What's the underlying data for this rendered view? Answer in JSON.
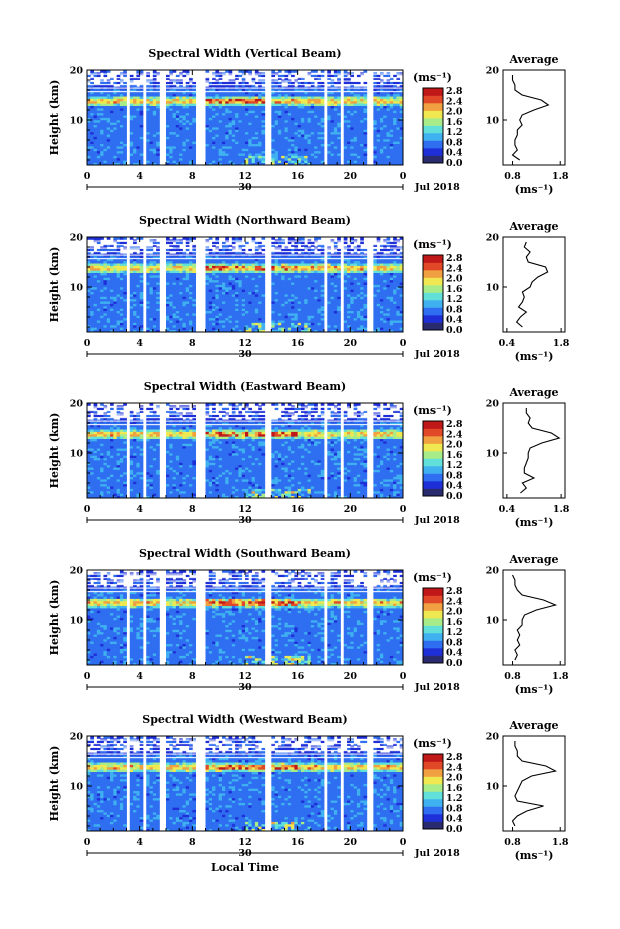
{
  "figure": {
    "xlabel": "Local Time",
    "date_label": "Jul 2018",
    "day_label": "30",
    "ylabel": "Height (km)",
    "cbar_unit": "(ms⁻¹)",
    "avg_title": "Average",
    "avg_xlabel": "(ms⁻¹)",
    "colormap": [
      "#2a2a6e",
      "#1f2fd8",
      "#2f6ef0",
      "#3fb0f0",
      "#60e0d8",
      "#a8ec8a",
      "#f0e850",
      "#f0a040",
      "#e04828",
      "#c01818"
    ]
  },
  "chart_data": [
    {
      "type": "heatmap",
      "title": "Spectral Width (Vertical Beam)",
      "xlabel": "",
      "ylabel": "Height (km)",
      "x_ticks": [
        "0",
        "4",
        "8",
        "12",
        "16",
        "20",
        "0"
      ],
      "xlim": [
        0,
        24
      ],
      "y_ticks": [
        "20",
        "10"
      ],
      "ylim": [
        1,
        20
      ],
      "colorbar": {
        "ticks": [
          "2.8",
          "2.4",
          "2.0",
          "1.6",
          "1.2",
          "0.8",
          "0.4",
          "0.0"
        ],
        "range": [
          0,
          2.8
        ]
      },
      "average": {
        "title": "Average",
        "x_ticks": [
          "0.8",
          "1.8"
        ],
        "xlim": [
          0.6,
          1.9
        ],
        "y_ticks": [
          "20",
          "10"
        ],
        "height": [
          2,
          3,
          4,
          5,
          6,
          7,
          8,
          9,
          10,
          11,
          12,
          13,
          14,
          15,
          16,
          17,
          18,
          19
        ],
        "value": [
          0.95,
          0.8,
          0.9,
          0.85,
          0.85,
          0.9,
          0.9,
          1.0,
          0.95,
          1.0,
          1.25,
          1.55,
          1.4,
          1.0,
          0.85,
          0.85,
          0.8,
          0.8
        ]
      }
    },
    {
      "type": "heatmap",
      "title": "Spectral Width (Northward Beam)",
      "xlabel": "",
      "ylabel": "Height (km)",
      "x_ticks": [
        "0",
        "4",
        "8",
        "12",
        "16",
        "20",
        "0"
      ],
      "xlim": [
        0,
        24
      ],
      "y_ticks": [
        "20",
        "10"
      ],
      "ylim": [
        1,
        20
      ],
      "colorbar": {
        "ticks": [
          "2.8",
          "2.4",
          "2.0",
          "1.6",
          "1.2",
          "0.8",
          "0.4",
          "0.0"
        ],
        "range": [
          0,
          2.8
        ]
      },
      "average": {
        "title": "Average",
        "x_ticks": [
          "0.4",
          "1.8"
        ],
        "xlim": [
          0.3,
          1.9
        ],
        "y_ticks": [
          "20",
          "10"
        ],
        "height": [
          2,
          3,
          4,
          5,
          6,
          7,
          8,
          9,
          10,
          11,
          12,
          13,
          14,
          15,
          16,
          17,
          18,
          19
        ],
        "value": [
          0.8,
          0.65,
          0.75,
          0.9,
          0.7,
          0.8,
          0.85,
          0.8,
          1.0,
          1.05,
          1.2,
          1.45,
          1.4,
          0.95,
          0.9,
          1.0,
          0.85,
          0.9
        ]
      }
    },
    {
      "type": "heatmap",
      "title": "Spectral Width (Eastward Beam)",
      "xlabel": "",
      "ylabel": "Height (km)",
      "x_ticks": [
        "0",
        "4",
        "8",
        "12",
        "16",
        "20",
        "0"
      ],
      "xlim": [
        0,
        24
      ],
      "y_ticks": [
        "20",
        "10"
      ],
      "ylim": [
        1,
        20
      ],
      "colorbar": {
        "ticks": [
          "2.8",
          "2.4",
          "2.0",
          "1.6",
          "1.2",
          "0.8",
          "0.4",
          "0.0"
        ],
        "range": [
          0,
          2.8
        ]
      },
      "average": {
        "title": "Average",
        "x_ticks": [
          "0.4",
          "1.8"
        ],
        "xlim": [
          0.3,
          1.9
        ],
        "y_ticks": [
          "20",
          "10"
        ],
        "height": [
          2,
          3,
          4,
          5,
          6,
          7,
          8,
          9,
          10,
          11,
          12,
          13,
          14,
          15,
          16,
          17,
          18,
          19
        ],
        "value": [
          0.75,
          0.9,
          0.8,
          1.1,
          0.85,
          0.85,
          0.9,
          0.95,
          0.95,
          1.0,
          1.3,
          1.75,
          1.55,
          1.05,
          0.95,
          1.0,
          0.9,
          0.9
        ]
      }
    },
    {
      "type": "heatmap",
      "title": "Spectral Width (Southward Beam)",
      "xlabel": "",
      "ylabel": "Height (km)",
      "x_ticks": [
        "0",
        "4",
        "8",
        "12",
        "16",
        "20",
        "0"
      ],
      "xlim": [
        0,
        24
      ],
      "y_ticks": [
        "20",
        "10"
      ],
      "ylim": [
        1,
        20
      ],
      "colorbar": {
        "ticks": [
          "2.8",
          "2.4",
          "2.0",
          "1.6",
          "1.2",
          "0.8",
          "0.4",
          "0.0"
        ],
        "range": [
          0,
          2.8
        ]
      },
      "average": {
        "title": "Average",
        "x_ticks": [
          "0.8",
          "1.8"
        ],
        "xlim": [
          0.6,
          1.9
        ],
        "y_ticks": [
          "20",
          "10"
        ],
        "height": [
          2,
          3,
          4,
          5,
          6,
          7,
          8,
          9,
          10,
          11,
          12,
          13,
          14,
          15,
          16,
          17,
          18,
          19
        ],
        "value": [
          0.85,
          0.9,
          0.85,
          0.95,
          0.9,
          0.95,
          0.9,
          1.0,
          1.0,
          1.05,
          1.3,
          1.7,
          1.45,
          1.0,
          0.9,
          0.85,
          0.85,
          0.8
        ]
      }
    },
    {
      "type": "heatmap",
      "title": "Spectral Width (Westward Beam)",
      "xlabel": "Local Time",
      "ylabel": "Height (km)",
      "x_ticks": [
        "0",
        "4",
        "8",
        "12",
        "16",
        "20",
        "0"
      ],
      "xlim": [
        0,
        24
      ],
      "y_ticks": [
        "20",
        "10"
      ],
      "ylim": [
        1,
        20
      ],
      "colorbar": {
        "ticks": [
          "2.8",
          "2.4",
          "2.0",
          "1.6",
          "1.2",
          "0.8",
          "0.4",
          "0.0"
        ],
        "range": [
          0,
          2.8
        ]
      },
      "average": {
        "title": "Average",
        "x_ticks": [
          "0.8",
          "1.8"
        ],
        "xlim": [
          0.6,
          1.9
        ],
        "y_ticks": [
          "20",
          "10"
        ],
        "height": [
          2,
          3,
          4,
          5,
          6,
          7,
          8,
          9,
          10,
          11,
          12,
          13,
          14,
          15,
          16,
          17,
          18,
          19
        ],
        "value": [
          0.85,
          0.8,
          0.9,
          1.1,
          1.45,
          0.9,
          0.85,
          0.9,
          0.95,
          1.0,
          1.2,
          1.7,
          1.5,
          1.0,
          0.9,
          0.9,
          0.85,
          0.85
        ]
      }
    }
  ]
}
